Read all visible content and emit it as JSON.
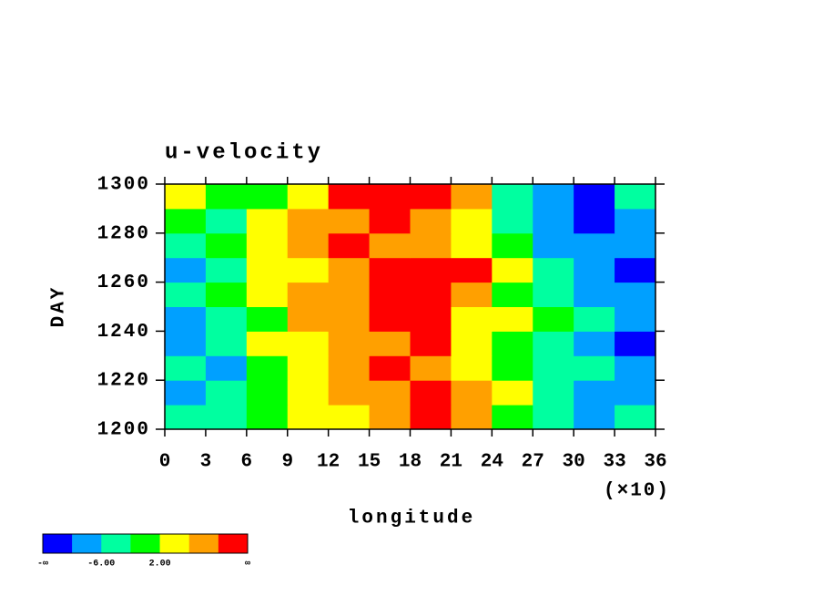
{
  "chart_data": {
    "type": "heatmap",
    "title": "u-velocity",
    "xlabel": "longitude",
    "xlabel_multiplier": "(×10)",
    "ylabel": "DAY",
    "xlim": [
      0,
      36
    ],
    "xticks": [
      0,
      3,
      6,
      9,
      12,
      15,
      18,
      21,
      24,
      27,
      30,
      33,
      36
    ],
    "ylim": [
      1200,
      1300
    ],
    "yticks": [
      1200,
      1220,
      1240,
      1260,
      1280,
      1300
    ],
    "x": [
      1.5,
      4.5,
      7.5,
      10.5,
      13.5,
      16.5,
      19.5,
      22.5,
      25.5,
      28.5,
      31.5,
      34.5
    ],
    "y": [
      1205,
      1215,
      1225,
      1235,
      1245,
      1255,
      1265,
      1275,
      1285,
      1295
    ],
    "z": [
      [
        -4,
        -4,
        0,
        4,
        4,
        8,
        12,
        8,
        0,
        -4,
        -8,
        -4
      ],
      [
        -8,
        -4,
        0,
        4,
        8,
        8,
        12,
        8,
        4,
        -4,
        -8,
        -8
      ],
      [
        -4,
        -8,
        0,
        4,
        8,
        12,
        8,
        4,
        0,
        -4,
        -4,
        -8
      ],
      [
        -8,
        -4,
        4,
        4,
        8,
        8,
        12,
        4,
        0,
        -4,
        -8,
        -12
      ],
      [
        -8,
        -4,
        0,
        8,
        8,
        12,
        12,
        4,
        4,
        0,
        -4,
        -8
      ],
      [
        -4,
        0,
        4,
        8,
        8,
        12,
        12,
        8,
        0,
        -4,
        -8,
        -8
      ],
      [
        -8,
        -4,
        4,
        4,
        8,
        12,
        12,
        12,
        4,
        -4,
        -8,
        -12
      ],
      [
        -4,
        0,
        4,
        8,
        12,
        8,
        8,
        4,
        0,
        -8,
        -8,
        -8
      ],
      [
        0,
        -4,
        4,
        8,
        8,
        12,
        8,
        4,
        -4,
        -8,
        -12,
        -8
      ],
      [
        4,
        0,
        0,
        4,
        12,
        12,
        12,
        8,
        -4,
        -8,
        -12,
        -4
      ]
    ],
    "colorbar": {
      "colors": [
        "#0000ff",
        "#00a0ff",
        "#00ffa0",
        "#00ff00",
        "#ffff00",
        "#ffa000",
        "#ff0000"
      ],
      "bounds": [
        null,
        -10,
        -6,
        -2,
        2,
        6,
        10,
        null
      ],
      "labels": [
        "-∞",
        null,
        "-6.00",
        null,
        "2.00",
        null,
        null,
        "∞"
      ]
    }
  }
}
